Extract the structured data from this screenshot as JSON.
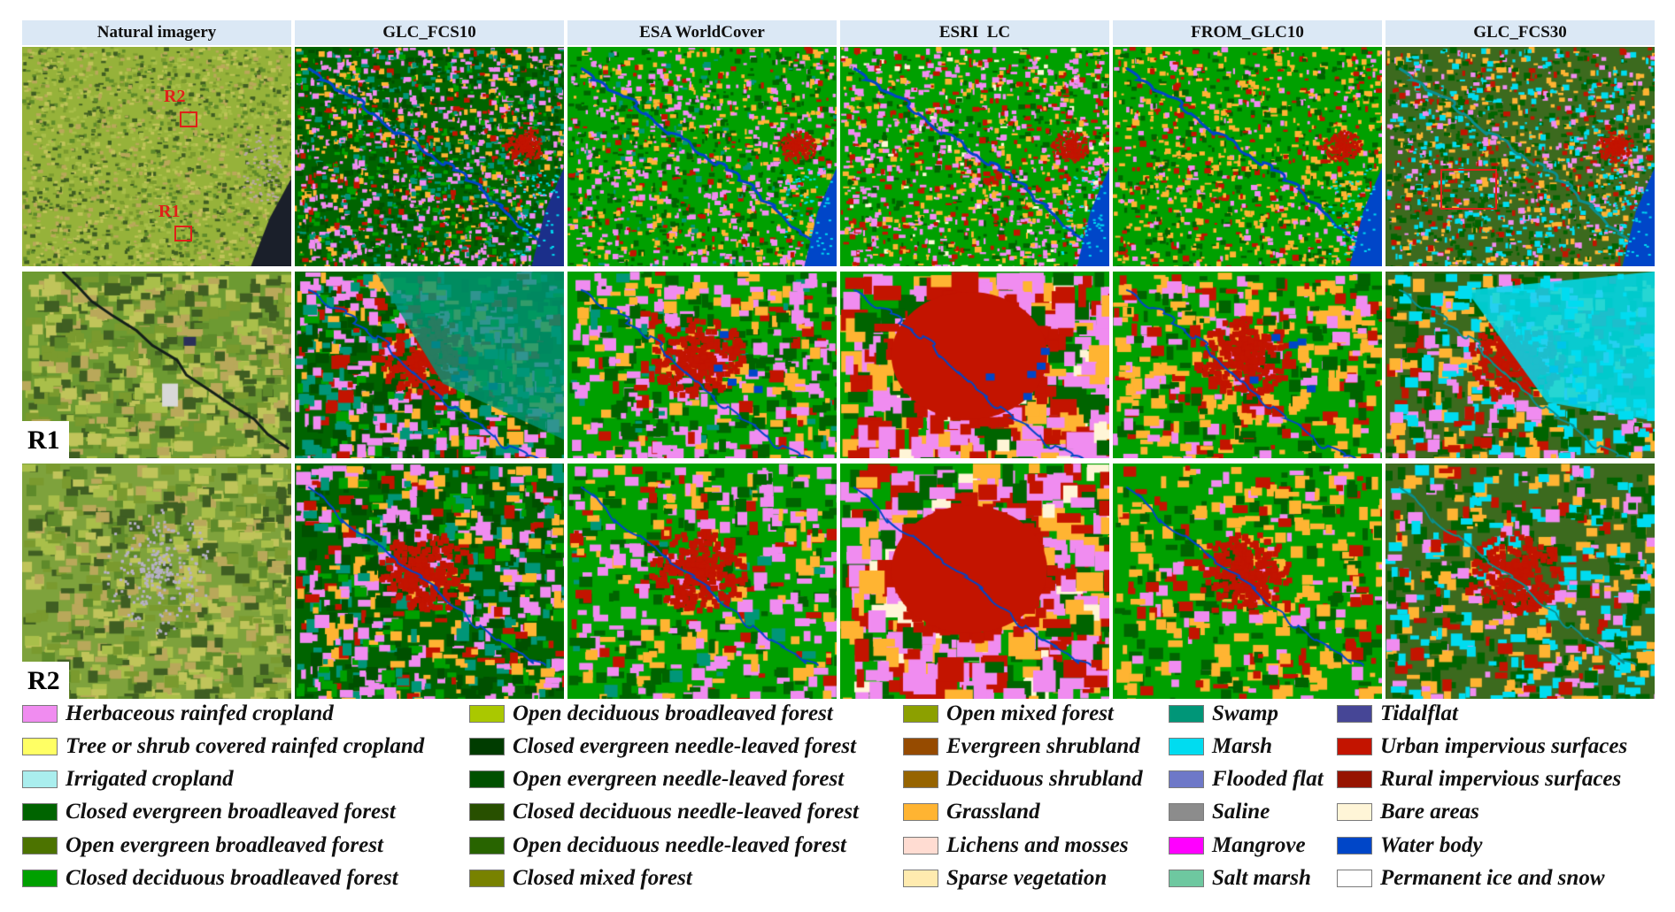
{
  "columns": [
    {
      "label": "Natural imagery"
    },
    {
      "label": "GLC_FCS10"
    },
    {
      "label": "ESA WorldCover"
    },
    {
      "label": "ESRI  LC"
    },
    {
      "label": "FROM_GLC10"
    },
    {
      "label": "GLC_FCS30"
    }
  ],
  "row_labels": [
    "R1",
    "R2"
  ],
  "overview_markers": [
    "R2",
    "R1"
  ],
  "legend": [
    [
      {
        "label": "Herbaceous rainfed cropland",
        "color": "#f08cf0"
      },
      {
        "label": "Tree or shrub covered rainfed cropland",
        "color": "#ffff64"
      },
      {
        "label": "Irrigated cropland",
        "color": "#aaeeee"
      },
      {
        "label": "Closed evergreen broadleaved forest",
        "color": "#006400"
      },
      {
        "label": "Open evergreen broadleaved forest",
        "color": "#4c7300"
      },
      {
        "label": "Closed deciduous broadleaved forest",
        "color": "#00a000"
      }
    ],
    [
      {
        "label": "Open deciduous broadleaved forest",
        "color": "#aac800"
      },
      {
        "label": "Closed evergreen needle-leaved forest",
        "color": "#003c00"
      },
      {
        "label": "Open evergreen needle-leaved forest",
        "color": "#005000"
      },
      {
        "label": "Closed deciduous needle-leaved forest",
        "color": "#285000"
      },
      {
        "label": "Open deciduous needle-leaved forest",
        "color": "#286400"
      },
      {
        "label": "Closed mixed forest",
        "color": "#788200"
      }
    ],
    [
      {
        "label": "Open mixed forest",
        "color": "#8ca000"
      },
      {
        "label": "Evergreen shrubland",
        "color": "#964b00"
      },
      {
        "label": "Deciduous shrubland",
        "color": "#966400"
      },
      {
        "label": "Grassland",
        "color": "#ffb432"
      },
      {
        "label": "Lichens and mosses",
        "color": "#ffdcd2"
      },
      {
        "label": "Sparse vegetation",
        "color": "#ffebaf"
      }
    ],
    [
      {
        "label": "Swamp",
        "color": "#009678"
      },
      {
        "label": "Marsh",
        "color": "#00dcf0"
      },
      {
        "label": "Flooded flat",
        "color": "#6e78c8"
      },
      {
        "label": "Saline",
        "color": "#8c8c8c"
      },
      {
        "label": "Mangrove",
        "color": "#ff00ff"
      },
      {
        "label": "Salt marsh",
        "color": "#6ec8a0"
      }
    ],
    [
      {
        "label": "Tidalflat",
        "color": "#464696"
      },
      {
        "label": "Urban impervious surfaces",
        "color": "#c31400"
      },
      {
        "label": "Rural impervious surfaces",
        "color": "#961400"
      },
      {
        "label": "Bare areas",
        "color": "#fff5d7"
      },
      {
        "label": "Water body",
        "color": "#0046c8"
      },
      {
        "label": "Permanent ice and snow",
        "color": "#ffffff"
      }
    ]
  ],
  "colors": {
    "header_bg": "#dbe8f5",
    "marker": "#e0201a",
    "imagery_base": "#8cb23c"
  }
}
